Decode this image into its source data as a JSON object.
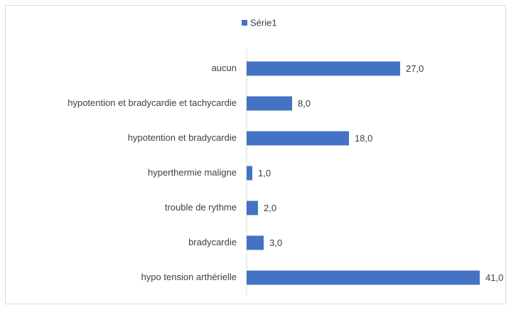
{
  "chart_data": {
    "type": "bar",
    "orientation": "horizontal",
    "categories": [
      "aucun",
      "hypotention et bradycardie et tachycardie",
      "hypotention et bradycardie",
      "hyperthermie maligne",
      "trouble de rythme",
      "bradycardie",
      "hypo tension arthérielle"
    ],
    "series": [
      {
        "name": "Série1",
        "color": "#4472c4",
        "values": [
          27,
          8,
          18,
          1,
          2,
          3,
          41
        ],
        "value_labels": [
          "27,0",
          "8,0",
          "18,0",
          "1,0",
          "2,0",
          "3,0",
          "41,0"
        ]
      }
    ],
    "legend": "top"
  }
}
